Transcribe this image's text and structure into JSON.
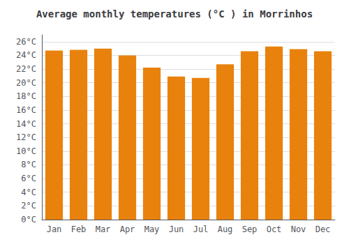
{
  "chart_data": {
    "type": "bar",
    "title": "Average monthly temperatures (°C ) in Morrinhos",
    "categories": [
      "Jan",
      "Feb",
      "Mar",
      "Apr",
      "May",
      "Jun",
      "Jul",
      "Aug",
      "Sep",
      "Oct",
      "Nov",
      "Dec"
    ],
    "values": [
      24.7,
      24.8,
      25.0,
      24.0,
      22.2,
      20.9,
      20.7,
      22.7,
      24.6,
      25.3,
      24.9,
      24.6
    ],
    "color": "#E8820C",
    "ylim": [
      0,
      27
    ],
    "yticks": [
      {
        "value": 0,
        "label": "0°C"
      },
      {
        "value": 2,
        "label": "2°C"
      },
      {
        "value": 4,
        "label": "4°C"
      },
      {
        "value": 6,
        "label": "6°C"
      },
      {
        "value": 8,
        "label": "8°C"
      },
      {
        "value": 10,
        "label": "10°C"
      },
      {
        "value": 12,
        "label": "12°C"
      },
      {
        "value": 14,
        "label": "14°C"
      },
      {
        "value": 16,
        "label": "16°C"
      },
      {
        "value": 18,
        "label": "18°C"
      },
      {
        "value": 20,
        "label": "20°C"
      },
      {
        "value": 22,
        "label": "22°C"
      },
      {
        "value": 24,
        "label": "24°C"
      },
      {
        "value": 26,
        "label": "26°C"
      }
    ],
    "grid": true
  }
}
